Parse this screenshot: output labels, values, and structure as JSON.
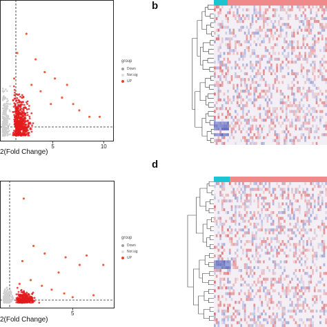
{
  "panels": {
    "a": {
      "legend": {
        "title": "group",
        "items": [
          "Down",
          "Not sig",
          "UP"
        ]
      },
      "xlabel": "2(Fold Change)",
      "xticks": [
        {
          "value": 5,
          "label": "5"
        },
        {
          "value": 10,
          "label": "10"
        }
      ]
    },
    "b": {
      "label": "b"
    },
    "c": {
      "legend": {
        "title": "group",
        "items": [
          "Down",
          "Not sig",
          "UP"
        ]
      },
      "xlabel": "2(Fold Change)",
      "xticks": [
        {
          "value": 5,
          "label": "5"
        }
      ]
    },
    "d": {
      "label": "d"
    }
  },
  "colors": {
    "down": "#9e9e9e",
    "notsig": "#cfcfcf",
    "up": "#e8451e",
    "up_dense": "#e31a1c",
    "group_low": "#1cc3d1",
    "group_high": "#f08a8a",
    "heat_red": "#d94b4b",
    "heat_blue": "#4d5bb8"
  },
  "chart_data": [
    {
      "type": "scatter",
      "xlabel": "2(Fold Change)",
      "xlim": [
        -0.2,
        11
      ],
      "xticks": [
        5,
        10
      ],
      "legend": [
        "Down",
        "Not sig",
        "UP"
      ],
      "threshold_x": 1,
      "series": [
        {
          "name": "UP",
          "points": [
            [
              1.2,
              0.9
            ],
            [
              1.5,
              1.3
            ],
            [
              2.0,
              0.6
            ],
            [
              2.4,
              1.6
            ],
            [
              2.9,
              0.8
            ],
            [
              3.3,
              1.2
            ],
            [
              3.8,
              0.7
            ],
            [
              4.2,
              1.0
            ],
            [
              4.8,
              0.5
            ],
            [
              5.2,
              0.9
            ],
            [
              5.9,
              0.6
            ],
            [
              6.4,
              0.8
            ],
            [
              7.0,
              0.5
            ],
            [
              7.6,
              0.4
            ],
            [
              8.6,
              0.3
            ],
            [
              9.6,
              0.3
            ]
          ]
        },
        {
          "name": "Not sig",
          "points": [
            [
              0.2,
              0.2
            ],
            [
              0.4,
              0.4
            ],
            [
              0.6,
              0.3
            ],
            [
              0.8,
              0.5
            ],
            [
              0.3,
              0.6
            ]
          ]
        }
      ]
    },
    {
      "type": "scatter",
      "xlabel": "2(Fold Change)",
      "xlim": [
        -0.2,
        8
      ],
      "xticks": [
        5
      ],
      "legend": [
        "Down",
        "Not sig",
        "UP"
      ],
      "threshold_x": 0.9,
      "series": [
        {
          "name": "UP",
          "points": [
            [
              1.5,
              5.5
            ],
            [
              2.2,
              3.0
            ],
            [
              1.4,
              2.2
            ],
            [
              3.0,
              2.6
            ],
            [
              4.0,
              1.6
            ],
            [
              4.5,
              2.4
            ],
            [
              5.5,
              2.0
            ],
            [
              6.0,
              2.5
            ],
            [
              7.2,
              2.0
            ],
            [
              1.2,
              1.0
            ],
            [
              2.0,
              1.2
            ],
            [
              2.8,
              0.9
            ],
            [
              3.5,
              0.7
            ],
            [
              4.4,
              0.5
            ],
            [
              5.0,
              0.3
            ],
            [
              6.5,
              0.4
            ]
          ]
        },
        {
          "name": "Not sig",
          "points": [
            [
              0.2,
              0.2
            ],
            [
              0.4,
              0.4
            ],
            [
              0.5,
              0.6
            ],
            [
              0.7,
              0.3
            ],
            [
              0.3,
              0.8
            ]
          ]
        }
      ]
    }
  ]
}
